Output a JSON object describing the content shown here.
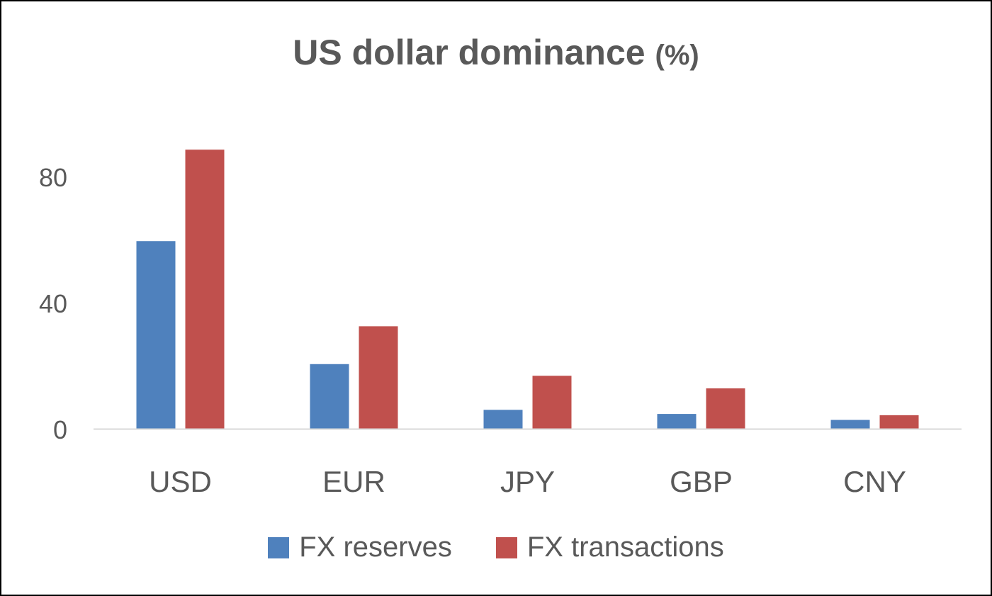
{
  "chart_data": {
    "type": "bar",
    "title": "US dollar dominance",
    "title_unit": "(%)",
    "categories": [
      "USD",
      "EUR",
      "JPY",
      "GBP",
      "CNY"
    ],
    "series": [
      {
        "name": "FX reserves",
        "color": "#4F81BD",
        "values": [
          59.5,
          20.5,
          6,
          4.7,
          2.8
        ]
      },
      {
        "name": "FX transactions",
        "color": "#C0504D",
        "values": [
          88.5,
          32.5,
          16.8,
          12.8,
          4.3
        ]
      }
    ],
    "y_ticks": [
      0,
      40,
      80
    ],
    "ylim": [
      0,
      100
    ],
    "legend_position": "bottom",
    "grid": false
  }
}
